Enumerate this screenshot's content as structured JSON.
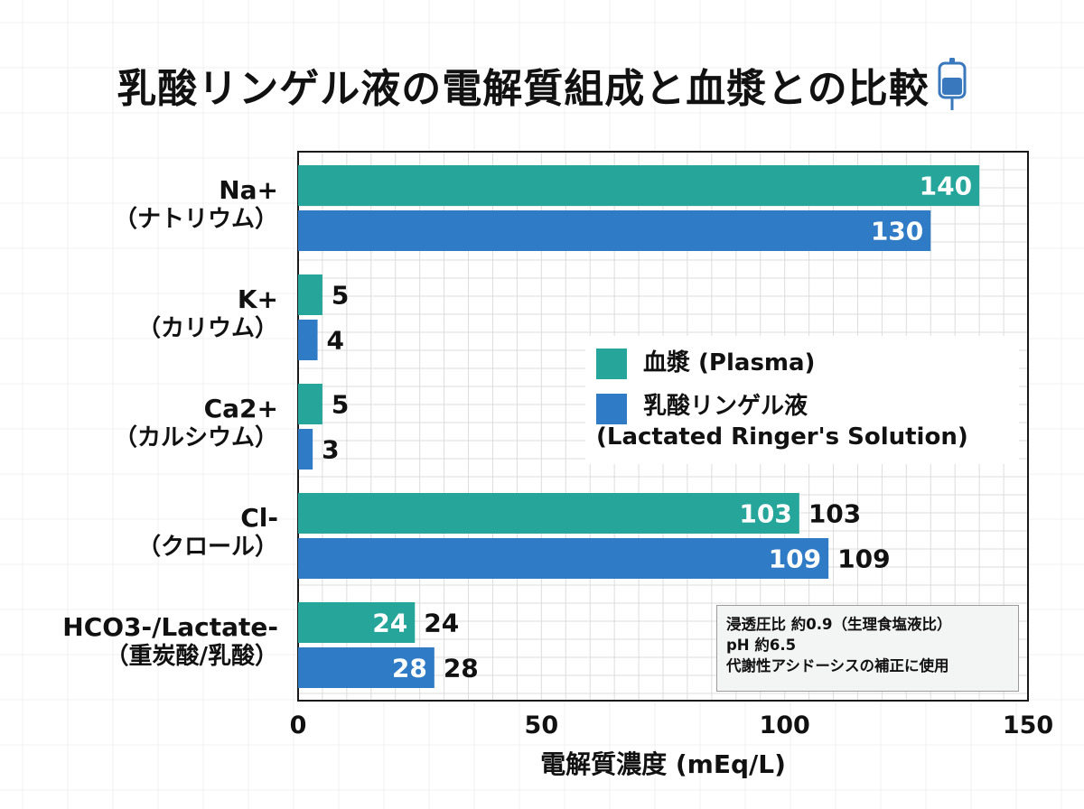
{
  "title": "乳酸リンゲル液の電解質組成と血漿との比較",
  "icon": "iv-drip-bag-icon",
  "colors": {
    "plasma": "#26a69a",
    "ringer": "#2f7bc6",
    "grid": "#dcdcdc",
    "axis": "#1a1a1a",
    "icon": "#3a78bd"
  },
  "chart_data": {
    "type": "bar",
    "orientation": "horizontal",
    "categories": [
      {
        "label": "Na+",
        "sublabel": "（ナトリウム）"
      },
      {
        "label": "K+",
        "sublabel": "（カリウム）"
      },
      {
        "label": "Ca2+",
        "sublabel": "（カルシウム）"
      },
      {
        "label": "Cl-",
        "sublabel": "（クロール）"
      },
      {
        "label": "HCO3-/Lactate-",
        "sublabel": "（重炭酸/乳酸）"
      }
    ],
    "series": [
      {
        "name": "血漿 (Plasma)",
        "values": [
          140,
          5,
          5,
          103,
          24
        ],
        "color": "#26a69a"
      },
      {
        "name": "乳酸リンゲル液 (Lactated Ringer's Solution)",
        "values": [
          130,
          4,
          3,
          109,
          28
        ],
        "color": "#2f7bc6"
      }
    ],
    "value_labels": [
      {
        "inside": [
          "140",
          "",
          "",
          "103",
          "24"
        ],
        "outside": [
          "",
          "5",
          "5",
          "103",
          "24"
        ]
      },
      {
        "inside": [
          "130",
          "",
          "",
          "109",
          "28"
        ],
        "outside": [
          "",
          "4",
          "3",
          "109",
          "28"
        ]
      }
    ],
    "xlabel": "電解質濃度 (mEq/L)",
    "xlim": [
      0,
      150
    ],
    "xticks": [
      "0",
      "50",
      "100",
      "150"
    ],
    "grid": true,
    "legend_position": "right-middle"
  },
  "legend": {
    "plasma": "血漿 (Plasma)",
    "ringer_line1": "乳酸リンゲル液",
    "ringer_line2": "(Lactated Ringer's Solution)"
  },
  "info": {
    "line1": "浸透圧比 約0.9（生理食塩液比）",
    "line2": "pH 約6.5",
    "line3": "代謝性アシドーシスの補正に使用"
  }
}
